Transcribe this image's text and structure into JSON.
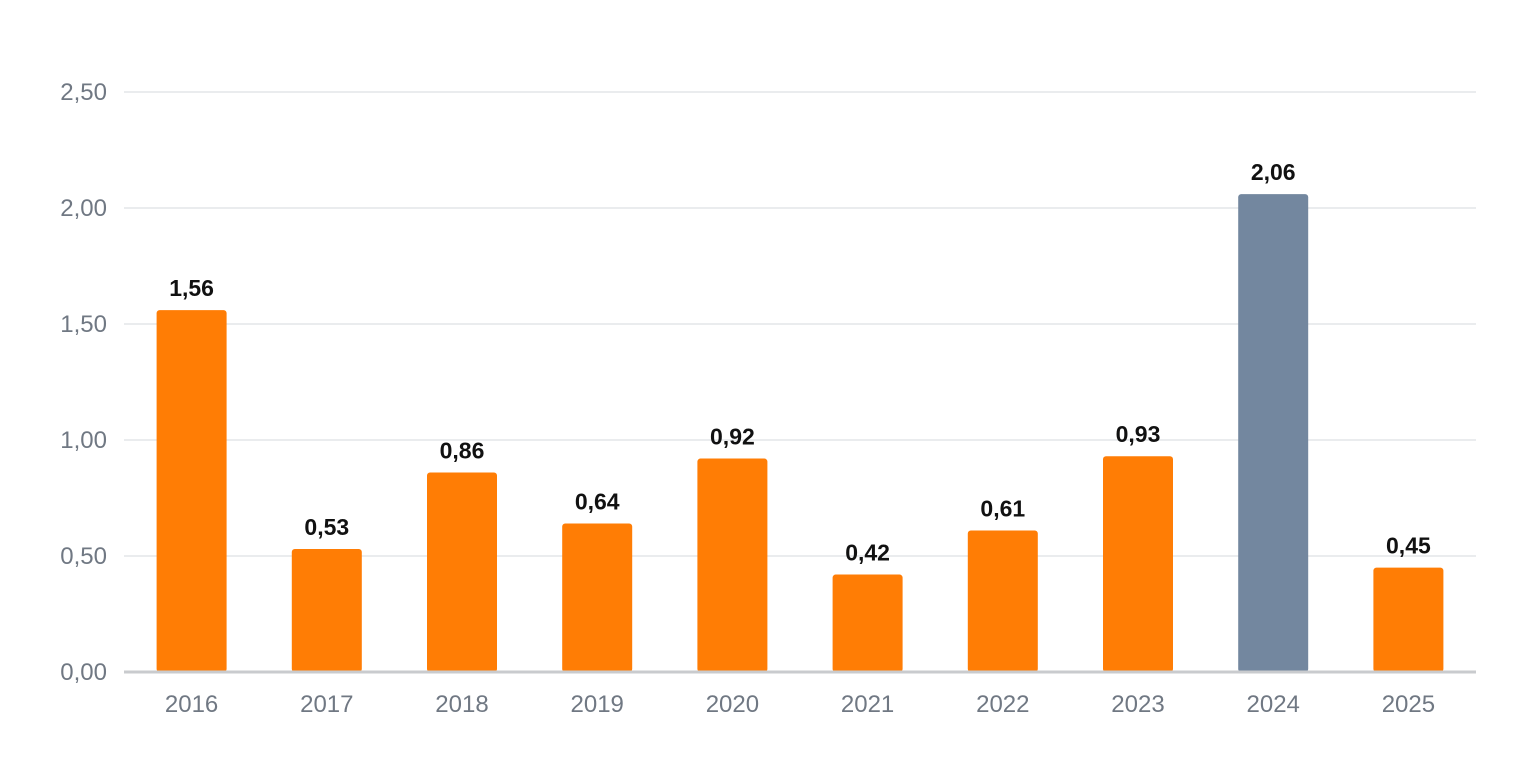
{
  "chart_data": {
    "type": "bar",
    "categories": [
      "2016",
      "2017",
      "2018",
      "2019",
      "2020",
      "2021",
      "2022",
      "2023",
      "2024",
      "2025"
    ],
    "values": [
      1.56,
      0.53,
      0.86,
      0.64,
      0.92,
      0.42,
      0.61,
      0.93,
      2.06,
      0.45
    ],
    "value_labels": [
      "1,56",
      "0,53",
      "0,86",
      "0,64",
      "0,92",
      "0,42",
      "0,61",
      "0,93",
      "2,06",
      "0,45"
    ],
    "ylim": [
      0,
      2.5
    ],
    "y_ticks": [
      0,
      0.5,
      1.0,
      1.5,
      2.0,
      2.5
    ],
    "y_tick_labels": [
      "0,00",
      "0,50",
      "1,00",
      "1,50",
      "2,00",
      "2,50"
    ],
    "grid": true,
    "legend": "none",
    "colors": {
      "bar": "#ff7d05",
      "highlight_bar": "#73879f",
      "grid": "#e3e5e8",
      "axis_text": "#707883",
      "label_text": "#111111"
    },
    "highlight_category": "2024"
  }
}
